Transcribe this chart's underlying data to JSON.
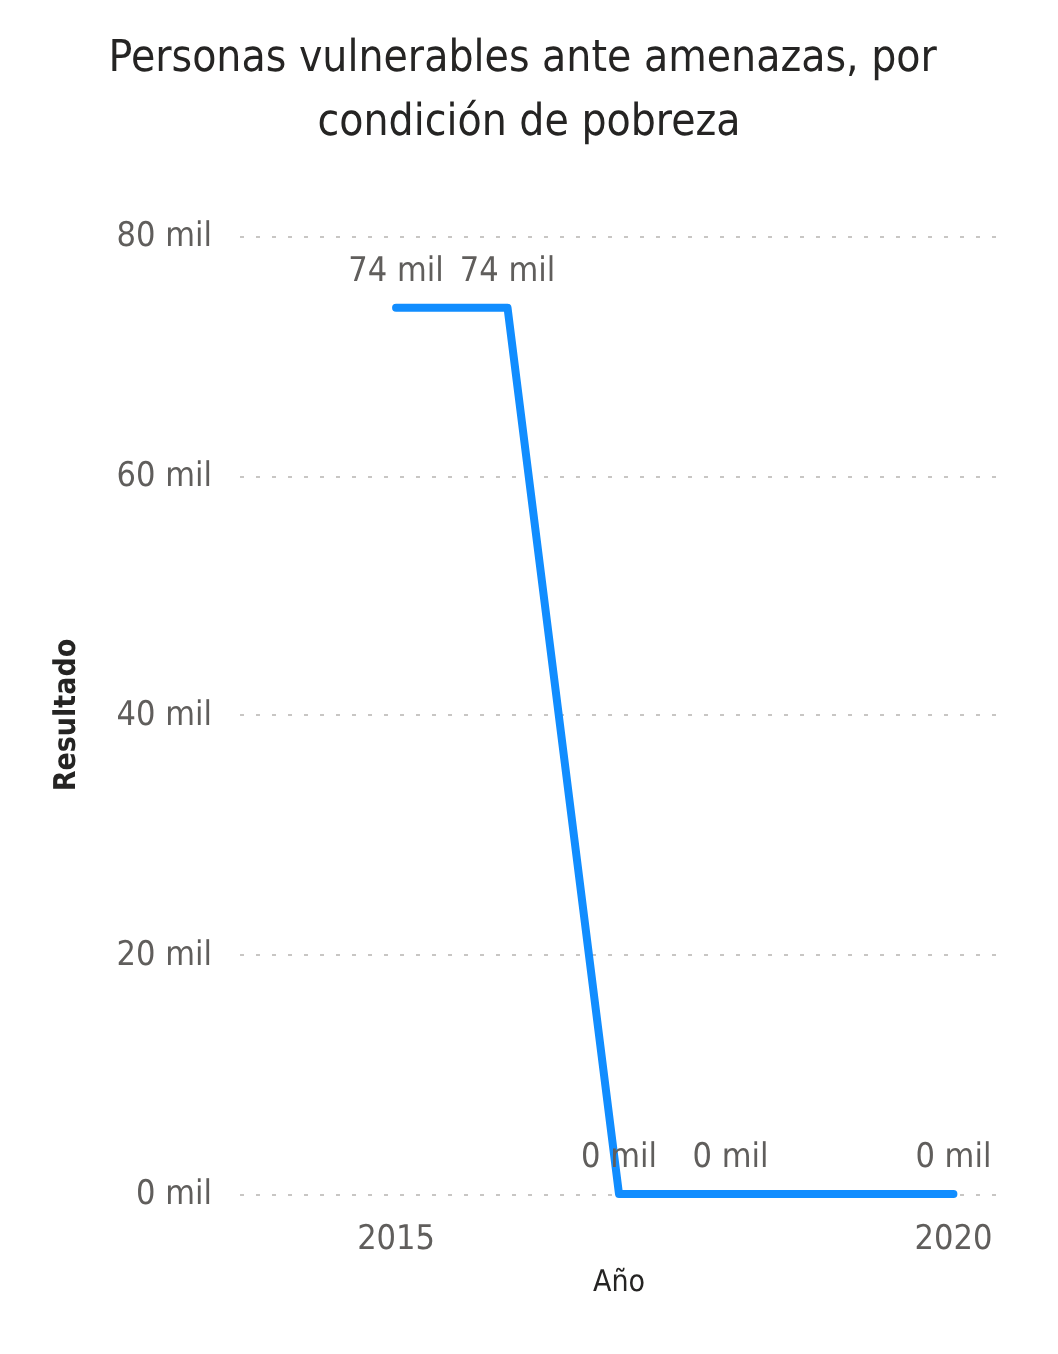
{
  "chart_data": {
    "type": "line",
    "title": "Personas vulnerables ante amenazas, por condición de pobreza",
    "xlabel": "Año",
    "ylabel": "Resultado",
    "x": [
      2015,
      2016,
      2017,
      2018,
      2019,
      2020
    ],
    "series": [
      {
        "color": "#118dff",
        "values": [
          74,
          74,
          0,
          0,
          0,
          0
        ],
        "value_labels": [
          "74 mil",
          "74 mil",
          "0 mil",
          "0 mil",
          null,
          "0 mil"
        ]
      }
    ],
    "xlim": [
      2013.6,
      2020.4
    ],
    "xticks": [
      2015,
      2020
    ],
    "ylim": [
      0,
      80
    ],
    "yticks": [
      {
        "value": 0,
        "label": "0 mil"
      },
      {
        "value": 20,
        "label": "20 mil"
      },
      {
        "value": 40,
        "label": "40 mil"
      },
      {
        "value": 60,
        "label": "60 mil"
      },
      {
        "value": 80,
        "label": "80 mil"
      }
    ],
    "grid": "y",
    "marker": "none",
    "line_style": "solid"
  }
}
